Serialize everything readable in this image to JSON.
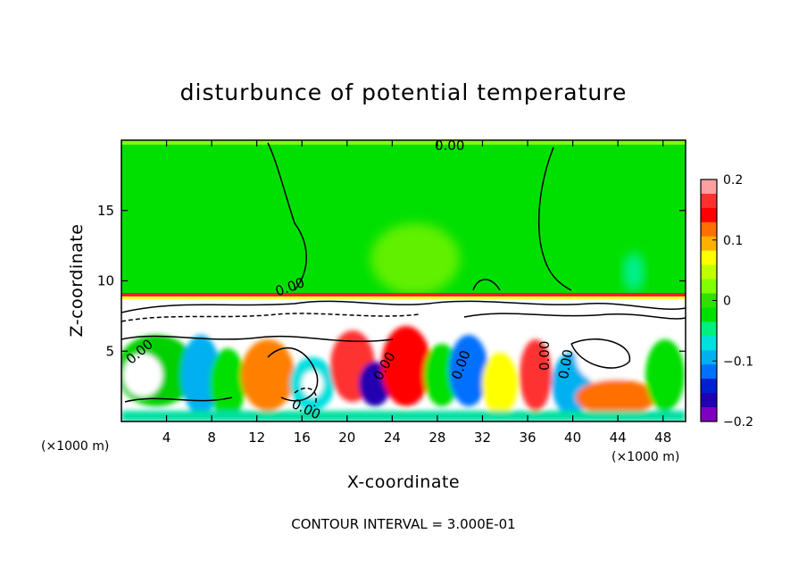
{
  "chart_data": {
    "type": "heatmap",
    "title": "disturbunce of potential temperature",
    "xlabel": "X-coordinate",
    "ylabel": "Z-coordinate",
    "x_unit_left": "(×1000 m)",
    "x_unit_right": "(×1000 m)",
    "xlim": [
      0,
      50
    ],
    "ylim": [
      0,
      20
    ],
    "xticks": [
      4,
      8,
      12,
      16,
      20,
      24,
      28,
      32,
      36,
      40,
      44,
      48
    ],
    "xtick_labels": [
      "4",
      "8",
      "12",
      "16",
      "20",
      "24",
      "28",
      "32",
      "36",
      "40",
      "44",
      "48"
    ],
    "yticks": [
      5,
      10,
      15
    ],
    "ytick_labels": [
      "5",
      "10",
      "15"
    ],
    "colorbar": {
      "range": [
        -0.2,
        0.2
      ],
      "ticks": [
        0.2,
        0.1,
        0,
        -0.1,
        -0.2
      ],
      "tick_labels": [
        "0.2",
        "0.1",
        "0",
        "−0.1",
        "−0.2"
      ],
      "colors": [
        "#ffa0a0",
        "#ff3030",
        "#ff0000",
        "#ff7000",
        "#ffb000",
        "#ffff00",
        "#c0ff00",
        "#80ff00",
        "#30e000",
        "#00e000",
        "#00f080",
        "#00e0e0",
        "#00b0f0",
        "#0070ff",
        "#0020d0",
        "#2000b0",
        "#8000c0"
      ]
    },
    "contour_labels": [
      "0.00",
      "0.00",
      "0.00",
      "0.00",
      "0.00",
      "0.00",
      "0.00",
      "0.00"
    ],
    "footer": "CONTOUR INTERVAL = 3.000E-01",
    "grid": false
  }
}
